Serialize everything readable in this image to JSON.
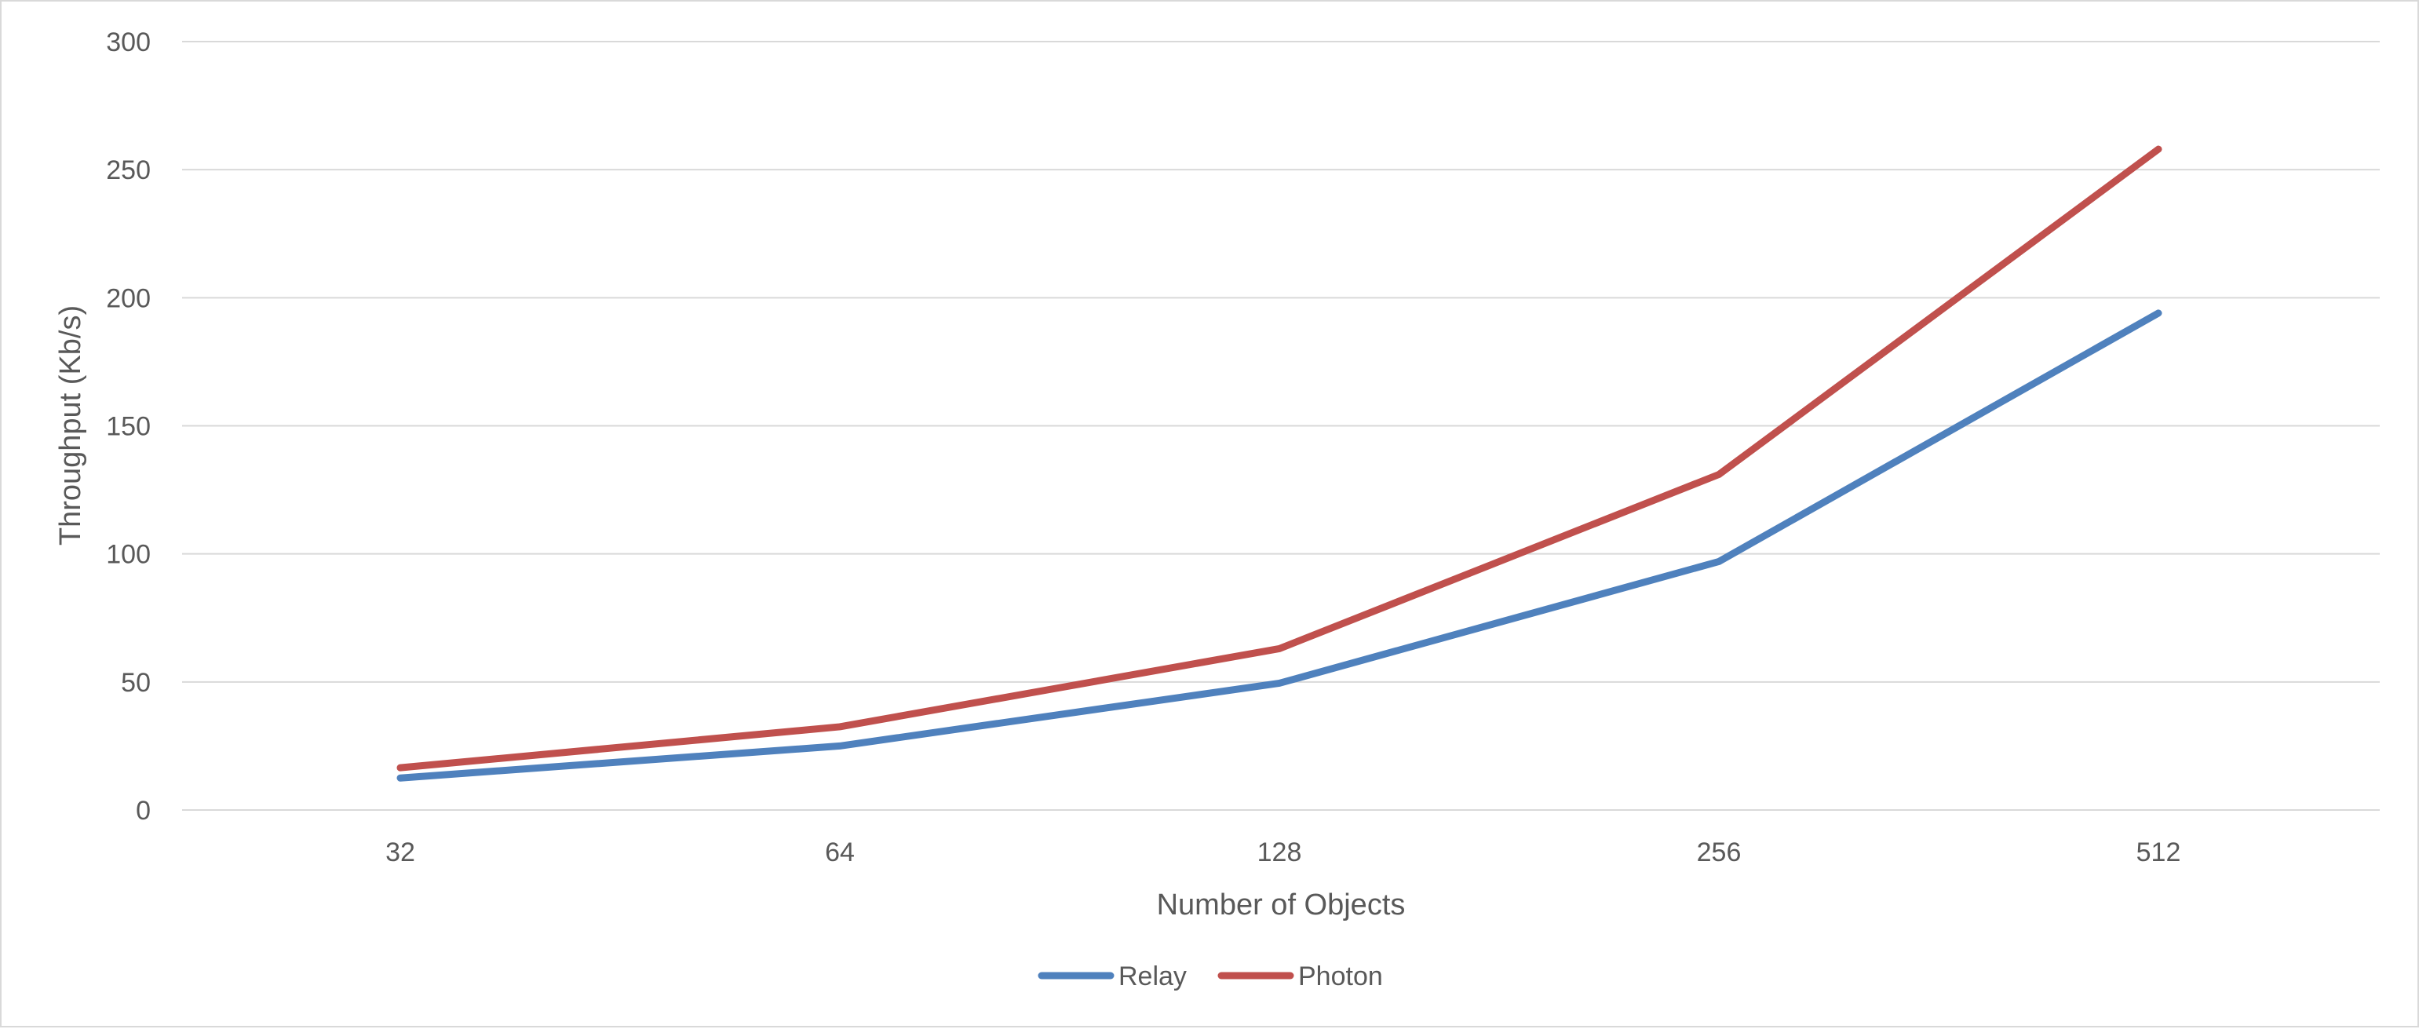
{
  "chart_data": {
    "type": "line",
    "title": "",
    "xlabel": "Number of Objects",
    "ylabel": "Throughput (Kb/s)",
    "categories": [
      "32",
      "64",
      "128",
      "256",
      "512"
    ],
    "ylim": [
      0,
      300
    ],
    "yticks": [
      0,
      50,
      100,
      150,
      200,
      250,
      300
    ],
    "grid": "horizontal",
    "legend": "bottom",
    "series": [
      {
        "name": "Relay",
        "color": "#4f81bd",
        "values": [
          12.5,
          25,
          49.5,
          97,
          194
        ]
      },
      {
        "name": "Photon",
        "color": "#c0504d",
        "values": [
          16.5,
          32.5,
          63,
          131,
          258
        ]
      }
    ]
  }
}
